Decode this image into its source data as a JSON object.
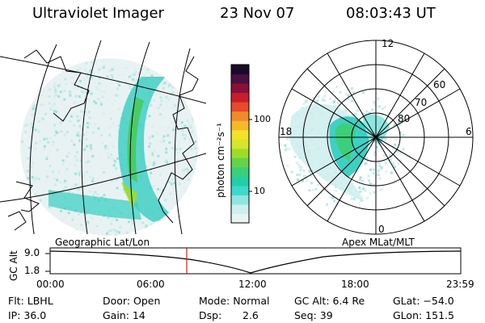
{
  "header": {
    "instrument": "Ultraviolet Imager",
    "date": "23 Nov 07",
    "time": "08:03:43 UT"
  },
  "colorbar": {
    "label": "photon cm⁻²s⁻¹",
    "ticks": [
      "100",
      "10"
    ],
    "scale": "log",
    "colors": [
      "#e8f4f4",
      "#cfeeee",
      "#8ee6e0",
      "#3fd8cc",
      "#22cfa8",
      "#3ccf7a",
      "#63d44a",
      "#9edc2a",
      "#d6e62a",
      "#f5e02a",
      "#f7b82a",
      "#f08a2a",
      "#e84a2a",
      "#c81e2a",
      "#8a1038",
      "#4a1040",
      "#1a0a2a"
    ]
  },
  "polar_plot": {
    "mlt_labels": [
      "12",
      "18",
      "6",
      "0"
    ],
    "lat_labels": [
      "60",
      "70",
      "80"
    ]
  },
  "panel_labels": {
    "left": "Geographic Lat/Lon",
    "right": "Apex MLat/MLT"
  },
  "altitude_strip": {
    "ylabel": "GC Alt",
    "ymax": "9.0",
    "ymin": "1.8",
    "xticks": [
      "00:00",
      "06:00",
      "12:00",
      "18:00",
      "23:59"
    ],
    "marker_time": "08:03"
  },
  "info": {
    "row1": [
      "Flt: LBHL",
      "Door: Open",
      "Mode: Normal",
      "GC Alt: 6.4 Re",
      "GLat: −54.0"
    ],
    "row2": [
      "IP: 36.0",
      "Gain: 14",
      "Dsp:",
      "2.6",
      "Seq: 39",
      "GLon: 151.5"
    ]
  }
}
